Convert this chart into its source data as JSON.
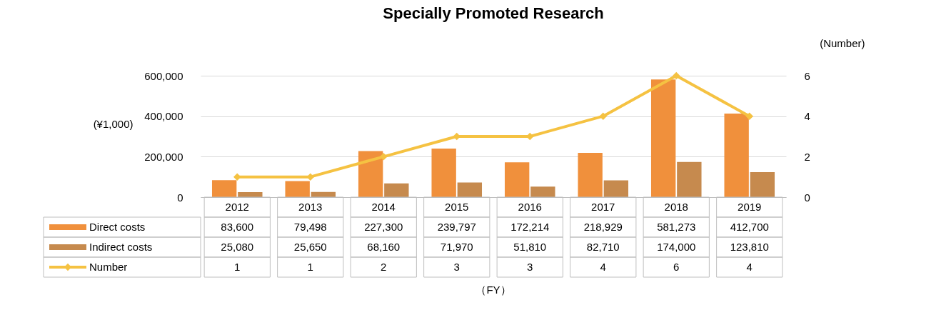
{
  "chart_data": {
    "type": "bar",
    "title": "Specially Promoted Research",
    "ylabel": "(¥1,000)",
    "y2label": "(Number)",
    "annotations": [
      "（FY）"
    ],
    "categories": [
      "2012",
      "2013",
      "2014",
      "2015",
      "2016",
      "2017",
      "2018",
      "2019"
    ],
    "series": [
      {
        "name": "Direct costs",
        "color": "#f0903c",
        "values": [
          83600,
          79498,
          227300,
          239797,
          172214,
          218929,
          581273,
          412700
        ],
        "value_labels": [
          "83,600",
          "79,498",
          "227,300",
          "239,797",
          "172,214",
          "218,929",
          "581,273",
          "412,700"
        ]
      },
      {
        "name": "Indirect costs",
        "color": "#c68a4e",
        "values": [
          25080,
          25650,
          68160,
          71970,
          51810,
          82710,
          174000,
          123810
        ],
        "value_labels": [
          "25,080",
          "25,650",
          "68,160",
          "71,970",
          "51,810",
          "82,710",
          "174,000",
          "123,810"
        ]
      },
      {
        "name": "Number",
        "type": "line",
        "axis": "y2",
        "color": "#f5c242",
        "marker": "diamond",
        "values": [
          1,
          1,
          2,
          3,
          3,
          4,
          6,
          4
        ],
        "value_labels": [
          "1",
          "1",
          "2",
          "3",
          "3",
          "4",
          "6",
          "4"
        ]
      }
    ],
    "ylim": [
      0,
      600000
    ],
    "yticks": [
      0,
      {
        "value": 200000,
        "label": "200,000"
      },
      {
        "value": 400000,
        "label": "400,000"
      },
      {
        "value": 600000,
        "label": "600,000"
      }
    ],
    "y2lim": [
      0,
      6
    ],
    "y2ticks": [
      0,
      2,
      4,
      6
    ],
    "grid": "y",
    "legend": "bottom"
  }
}
